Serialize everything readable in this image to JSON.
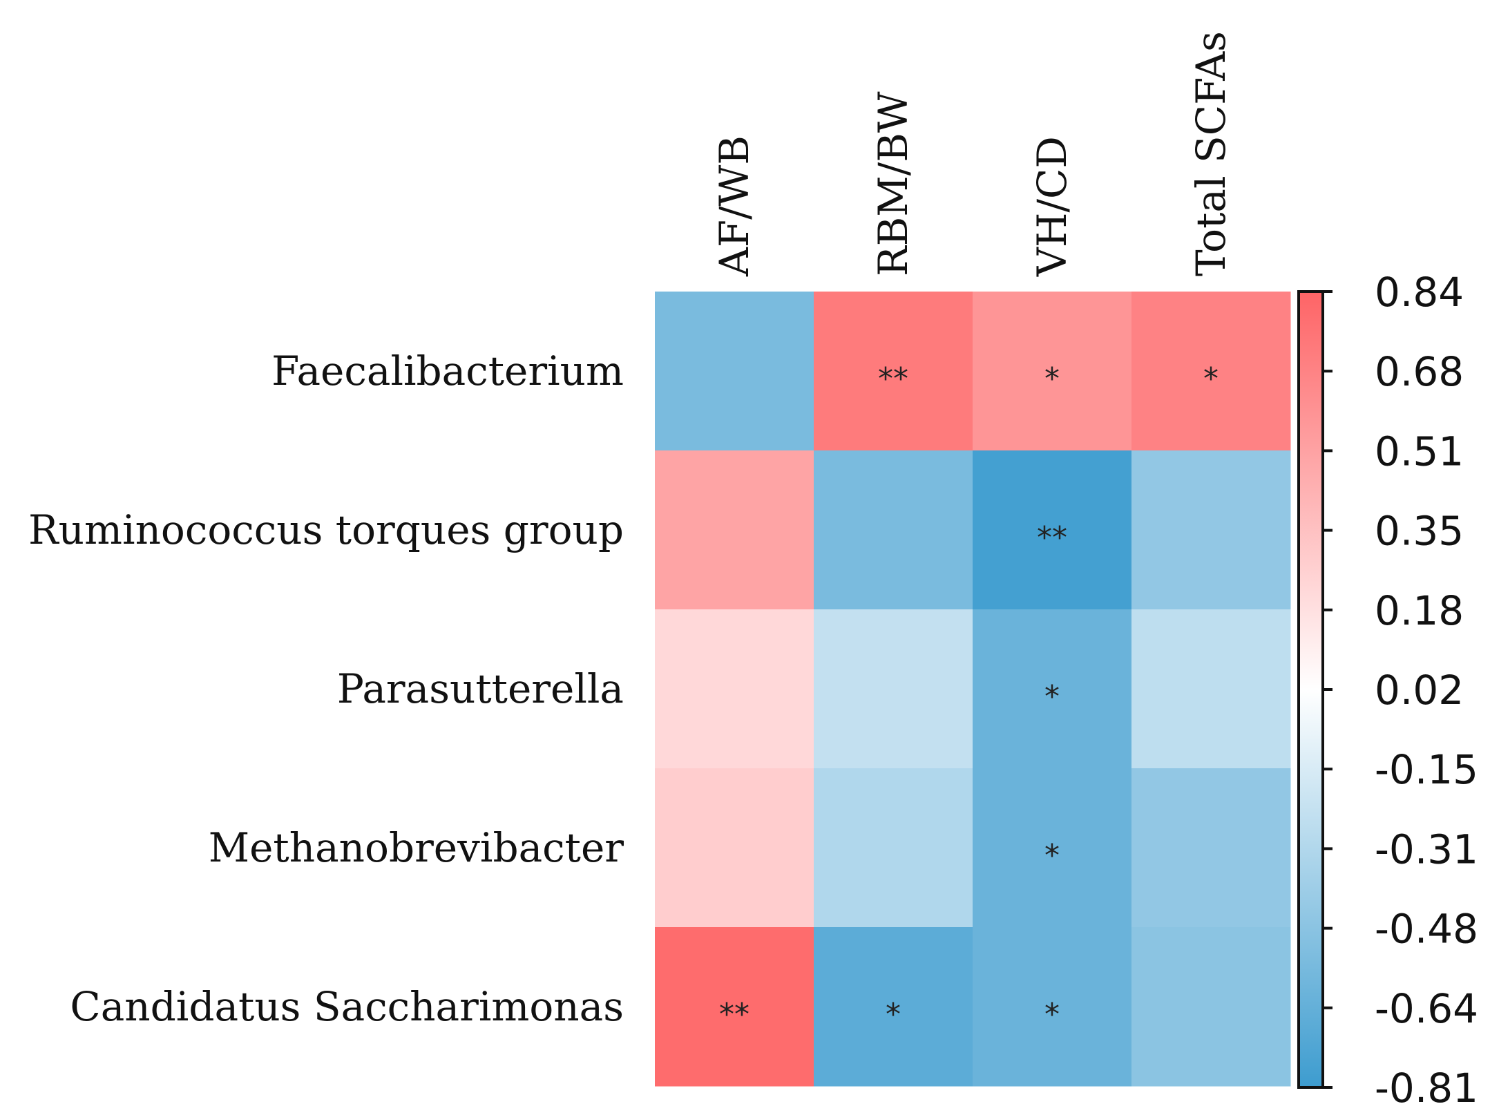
{
  "chart_data": {
    "type": "heatmap",
    "title": "",
    "columns": [
      "AF/WB",
      "RBM/BW",
      "VH/CD",
      "Total SCFAs"
    ],
    "rows": [
      "Faecalibacterium",
      "Ruminococcus torques group",
      "Parasutterella",
      "Methanobrevibacter",
      "Candidatus Saccharimonas"
    ],
    "values": [
      [
        -0.55,
        0.72,
        0.58,
        0.68
      ],
      [
        0.5,
        -0.55,
        -0.78,
        -0.45
      ],
      [
        0.22,
        -0.24,
        -0.62,
        -0.26
      ],
      [
        0.28,
        -0.32,
        -0.62,
        -0.45
      ],
      [
        0.8,
        -0.68,
        -0.62,
        -0.48
      ]
    ],
    "significance": [
      [
        "",
        "**",
        "*",
        "*"
      ],
      [
        "",
        "",
        "**",
        ""
      ],
      [
        "",
        "",
        "*",
        ""
      ],
      [
        "",
        "",
        "*",
        ""
      ],
      [
        "**",
        "*",
        "*",
        ""
      ]
    ],
    "colorbar": {
      "min": -0.81,
      "max": 0.84,
      "ticks": [
        "0.84",
        "0.68",
        "0.51",
        "0.35",
        "0.18",
        "0.02",
        "-0.15",
        "-0.31",
        "-0.48",
        "-0.64",
        "-0.81"
      ],
      "tick_values": [
        0.84,
        0.68,
        0.51,
        0.35,
        0.18,
        0.02,
        -0.15,
        -0.31,
        -0.48,
        -0.64,
        -0.81
      ],
      "color_high": "#fe6466",
      "color_mid": "#ffffff",
      "color_low": "#3d9ccf"
    }
  }
}
